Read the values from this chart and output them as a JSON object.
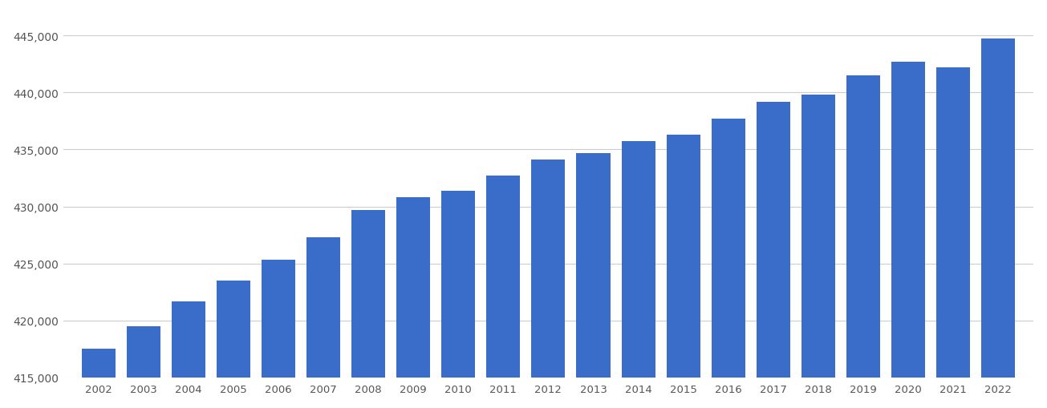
{
  "years": [
    2002,
    2003,
    2004,
    2005,
    2006,
    2007,
    2008,
    2009,
    2010,
    2011,
    2012,
    2013,
    2014,
    2015,
    2016,
    2017,
    2018,
    2019,
    2020,
    2021,
    2022
  ],
  "values": [
    417500,
    419500,
    421700,
    423500,
    425300,
    427300,
    429700,
    430800,
    431400,
    432700,
    434100,
    434700,
    435700,
    436300,
    437700,
    439200,
    439800,
    441500,
    442700,
    442200,
    444700
  ],
  "bar_color": "#3a6dc9",
  "background_color": "#ffffff",
  "grid_color": "#cccccc",
  "tick_color": "#555555",
  "ylim_min": 415000,
  "ylim_max": 447000,
  "ytick_step": 5000
}
